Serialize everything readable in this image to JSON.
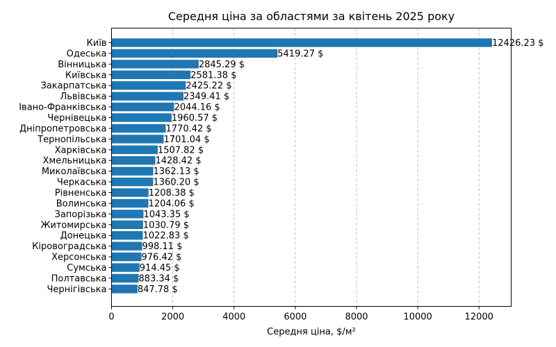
{
  "chart_data": {
    "type": "bar",
    "orientation": "horizontal",
    "title": "Середня ціна за областями за квітень 2025 року",
    "xlabel": "Середня ціна, $/м²",
    "ylabel": "",
    "xlim": [
      0,
      13050
    ],
    "xticks": [
      0,
      2000,
      4000,
      6000,
      8000,
      10000,
      12000
    ],
    "grid": "vertical-dashed",
    "bar_color": "#1f77b4",
    "value_suffix": " $",
    "categories": [
      "Київ",
      "Одеська",
      "Вінницька",
      "Київська",
      "Закарпатська",
      "Львівська",
      "Івано-Франківська",
      "Чернівецька",
      "Дніпропетровська",
      "Тернопільська",
      "Харківська",
      "Хмельницька",
      "Миколаївська",
      "Черкаська",
      "Рівненська",
      "Волинська",
      "Запорізька",
      "Житомирська",
      "Донецька",
      "Кіровоградська",
      "Херсонська",
      "Сумська",
      "Полтавська",
      "Чернігівська"
    ],
    "values": [
      12426.23,
      5419.27,
      2845.29,
      2581.38,
      2425.22,
      2349.41,
      2044.16,
      1960.57,
      1770.42,
      1701.04,
      1507.82,
      1428.42,
      1362.13,
      1360.2,
      1208.38,
      1204.06,
      1043.35,
      1030.79,
      1022.83,
      998.11,
      976.42,
      914.45,
      883.34,
      847.78
    ],
    "value_labels": [
      "12426.23 $",
      "5419.27 $",
      "2845.29 $",
      "2581.38 $",
      "2425.22 $",
      "2349.41 $",
      "2044.16 $",
      "1960.57 $",
      "1770.42 $",
      "1701.04 $",
      "1507.82 $",
      "1428.42 $",
      "1362.13 $",
      "1360.20 $",
      "1208.38 $",
      "1204.06 $",
      "1043.35 $",
      "1030.79 $",
      "1022.83 $",
      "998.11 $",
      "976.42 $",
      "914.45 $",
      "883.34 $",
      "847.78 $"
    ]
  }
}
